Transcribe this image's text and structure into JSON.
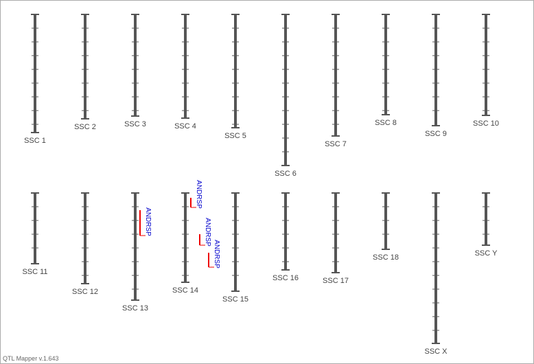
{
  "chromosomes": [
    {
      "label": "SSC 1"
    },
    {
      "label": "SSC 2"
    },
    {
      "label": "SSC 3"
    },
    {
      "label": "SSC 4"
    },
    {
      "label": "SSC 5"
    },
    {
      "label": "SSC 6"
    },
    {
      "label": "SSC 7"
    },
    {
      "label": "SSC 8"
    },
    {
      "label": "SSC 9"
    },
    {
      "label": "SSC 10"
    },
    {
      "label": "SSC 11"
    },
    {
      "label": "SSC 12"
    },
    {
      "label": "SSC 13"
    },
    {
      "label": "SSC 14"
    },
    {
      "label": "SSC 15"
    },
    {
      "label": "SSC 16"
    },
    {
      "label": "SSC 17"
    },
    {
      "label": "SSC 18"
    },
    {
      "label": "SSC X"
    },
    {
      "label": "SSC Y"
    }
  ],
  "qtls": [
    {
      "label": "ANDRSP"
    },
    {
      "label": "ANDRSP"
    },
    {
      "label": "ANDRSP"
    },
    {
      "label": "ANDRSP"
    }
  ],
  "footer": "QTL Mapper v.1.643"
}
